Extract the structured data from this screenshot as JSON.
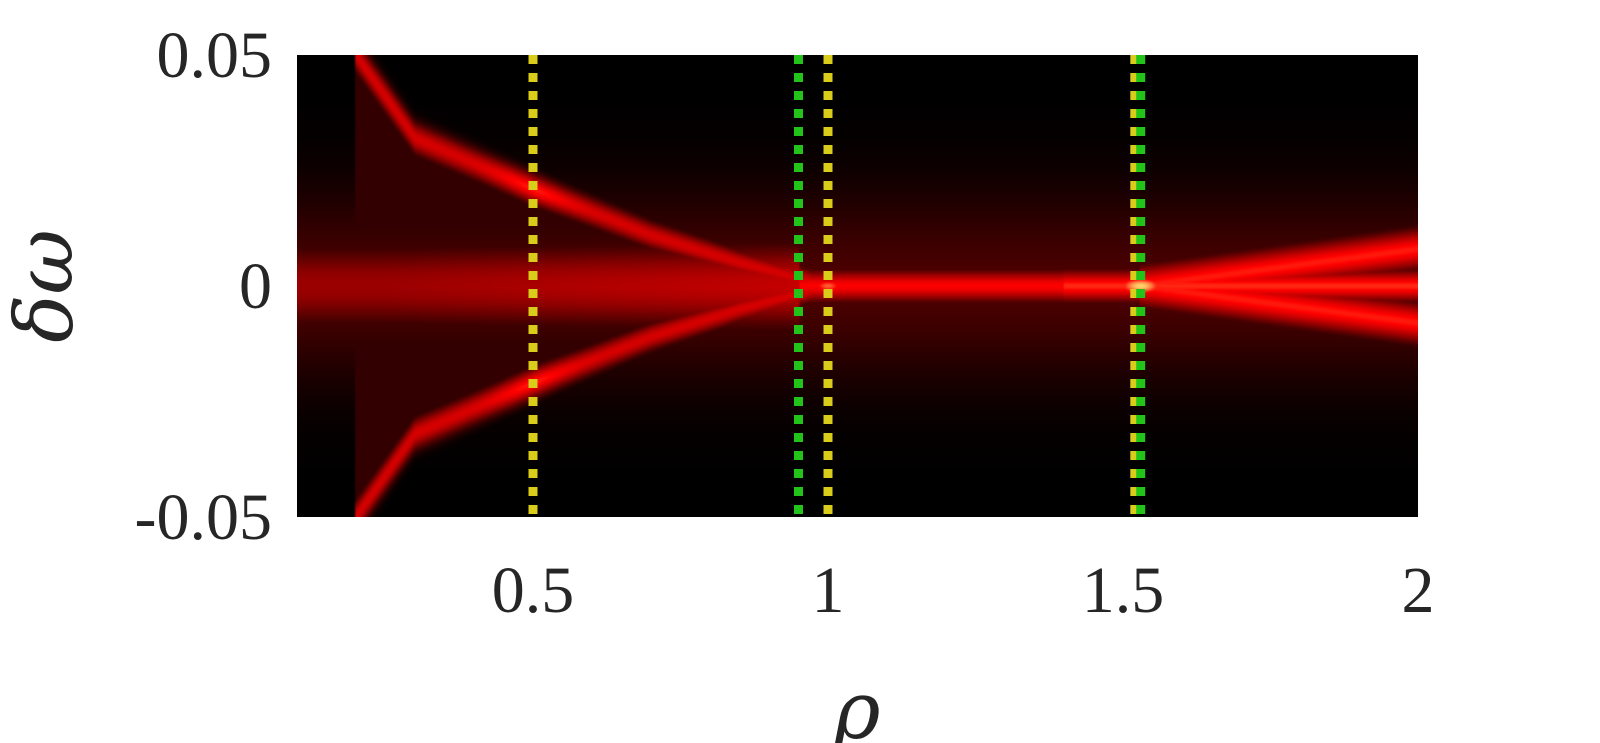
{
  "chart_data": {
    "type": "heatmap",
    "title": "",
    "xlabel": "ρ",
    "ylabel": "δω",
    "xlim": [
      0.1,
      2.0
    ],
    "ylim": [
      -0.05,
      0.05
    ],
    "xticks": [
      {
        "value": 0.5,
        "label": "0.5"
      },
      {
        "value": 1,
        "label": "1"
      },
      {
        "value": 1.5,
        "label": "1.5"
      },
      {
        "value": 2,
        "label": "2"
      }
    ],
    "yticks": [
      {
        "value": 0.05,
        "label": "0.05"
      },
      {
        "value": 0,
        "label": "0"
      },
      {
        "value": -0.05,
        "label": "-0.05"
      }
    ],
    "colormap": [
      "#000000",
      "#8b0000",
      "#ff0000",
      "#ffff80"
    ],
    "ridges": [
      {
        "branch": "upper",
        "points": [
          [
            0.2,
            0.05
          ],
          [
            0.3,
            0.032
          ],
          [
            0.5,
            0.021
          ],
          [
            0.7,
            0.011
          ],
          [
            0.85,
            0.005
          ],
          [
            1.0,
            0.0
          ]
        ]
      },
      {
        "branch": "lower",
        "points": [
          [
            0.2,
            -0.05
          ],
          [
            0.3,
            -0.032
          ],
          [
            0.5,
            -0.021
          ],
          [
            0.7,
            -0.011
          ],
          [
            0.85,
            -0.005
          ],
          [
            1.0,
            0.0
          ]
        ]
      },
      {
        "branch": "center",
        "points": [
          [
            0.1,
            0.0
          ],
          [
            2.0,
            0.0
          ]
        ]
      },
      {
        "branch": "upper-right",
        "points": [
          [
            1.53,
            0.0
          ],
          [
            2.0,
            0.008
          ]
        ]
      },
      {
        "branch": "lower-right",
        "points": [
          [
            1.53,
            0.0
          ],
          [
            2.0,
            -0.008
          ]
        ]
      }
    ],
    "vlines": [
      {
        "x": 0.5,
        "color": "#d9cc1a",
        "style": "dotted"
      },
      {
        "x": 0.95,
        "color": "#22c41a",
        "style": "dotted"
      },
      {
        "x": 1.0,
        "color": "#d9cc1a",
        "style": "dotted"
      },
      {
        "x": 1.52,
        "color": "#d9cc1a",
        "style": "dotted"
      },
      {
        "x": 1.53,
        "color": "#22c41a",
        "style": "dotted"
      }
    ]
  }
}
